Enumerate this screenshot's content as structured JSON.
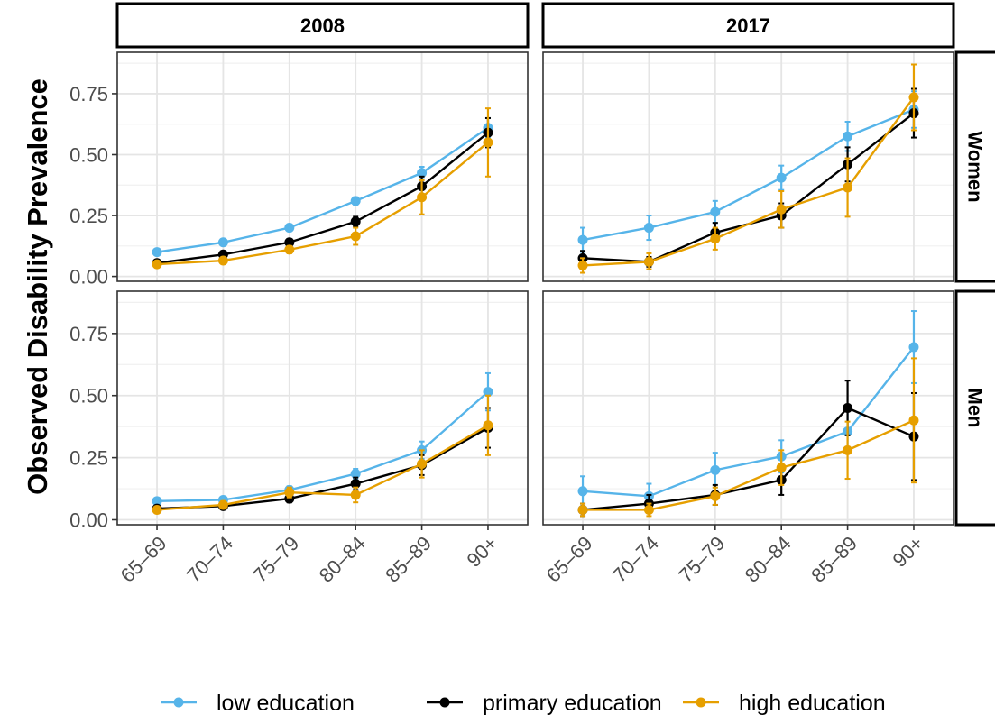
{
  "chart_data": {
    "type": "line",
    "ylabel": "Observed Disability Prevalence",
    "xlabel": "",
    "categories": [
      "65–69",
      "70–74",
      "75–79",
      "80–84",
      "85–89",
      "90+"
    ],
    "ylim": [
      -0.02,
      0.92
    ],
    "yticks": [
      0.0,
      0.25,
      0.5,
      0.75
    ],
    "ytick_labels": [
      "0.00",
      "0.25",
      "0.50",
      "0.75"
    ],
    "columns": [
      "2008",
      "2017"
    ],
    "rows": [
      "Women",
      "Men"
    ],
    "grid": true,
    "legend_position": "bottom",
    "series_meta": [
      {
        "key": "low",
        "name": "low education",
        "color": "#56B4E9"
      },
      {
        "key": "primary",
        "name": "primary education",
        "color": "#000000"
      },
      {
        "key": "high",
        "name": "high education",
        "color": "#E69F00"
      }
    ],
    "panels": [
      {
        "column": "2008",
        "row": "Women",
        "series": {
          "low": {
            "values": [
              0.1,
              0.14,
              0.2,
              0.31,
              0.425,
              0.61
            ],
            "lower": [
              0.09,
              0.13,
              0.19,
              0.295,
              0.4,
              0.57
            ],
            "upper": [
              0.11,
              0.15,
              0.21,
              0.325,
              0.45,
              0.65
            ]
          },
          "primary": {
            "values": [
              0.055,
              0.09,
              0.14,
              0.225,
              0.37,
              0.59
            ],
            "lower": [
              0.045,
              0.08,
              0.13,
              0.205,
              0.33,
              0.53
            ],
            "upper": [
              0.065,
              0.1,
              0.15,
              0.245,
              0.41,
              0.65
            ]
          },
          "high": {
            "values": [
              0.05,
              0.065,
              0.11,
              0.165,
              0.325,
              0.55
            ],
            "lower": [
              0.04,
              0.055,
              0.095,
              0.13,
              0.255,
              0.41
            ],
            "upper": [
              0.06,
              0.075,
              0.125,
              0.2,
              0.395,
              0.69
            ]
          }
        }
      },
      {
        "column": "2017",
        "row": "Women",
        "series": {
          "low": {
            "values": [
              0.15,
              0.2,
              0.265,
              0.405,
              0.575,
              0.685
            ],
            "lower": [
              0.1,
              0.15,
              0.22,
              0.355,
              0.515,
              0.61
            ],
            "upper": [
              0.2,
              0.25,
              0.31,
              0.455,
              0.635,
              0.76
            ]
          },
          "primary": {
            "values": [
              0.075,
              0.06,
              0.18,
              0.25,
              0.46,
              0.67
            ],
            "lower": [
              0.045,
              0.04,
              0.14,
              0.2,
              0.39,
              0.57
            ],
            "upper": [
              0.105,
              0.08,
              0.22,
              0.3,
              0.53,
              0.77
            ]
          },
          "high": {
            "values": [
              0.045,
              0.06,
              0.155,
              0.275,
              0.365,
              0.735
            ],
            "lower": [
              0.015,
              0.03,
              0.11,
              0.2,
              0.245,
              0.6
            ],
            "upper": [
              0.075,
              0.095,
              0.2,
              0.35,
              0.485,
              0.87
            ]
          }
        }
      },
      {
        "column": "2008",
        "row": "Men",
        "series": {
          "low": {
            "values": [
              0.075,
              0.08,
              0.12,
              0.185,
              0.28,
              0.515
            ],
            "lower": [
              0.065,
              0.07,
              0.105,
              0.165,
              0.245,
              0.44
            ],
            "upper": [
              0.085,
              0.09,
              0.135,
              0.205,
              0.315,
              0.59
            ]
          },
          "primary": {
            "values": [
              0.045,
              0.055,
              0.085,
              0.145,
              0.22,
              0.37
            ],
            "lower": [
              0.035,
              0.045,
              0.07,
              0.12,
              0.18,
              0.29
            ],
            "upper": [
              0.055,
              0.065,
              0.1,
              0.17,
              0.26,
              0.45
            ]
          },
          "high": {
            "values": [
              0.04,
              0.06,
              0.11,
              0.1,
              0.225,
              0.38
            ],
            "lower": [
              0.03,
              0.045,
              0.09,
              0.07,
              0.17,
              0.26
            ],
            "upper": [
              0.05,
              0.075,
              0.13,
              0.13,
              0.28,
              0.5
            ]
          }
        }
      },
      {
        "column": "2017",
        "row": "Men",
        "series": {
          "low": {
            "values": [
              0.115,
              0.095,
              0.2,
              0.255,
              0.355,
              0.695
            ],
            "lower": [
              0.055,
              0.045,
              0.13,
              0.19,
              0.27,
              0.55
            ],
            "upper": [
              0.175,
              0.145,
              0.27,
              0.32,
              0.44,
              0.84
            ]
          },
          "primary": {
            "values": [
              0.04,
              0.065,
              0.1,
              0.16,
              0.45,
              0.335
            ],
            "lower": [
              0.015,
              0.03,
              0.06,
              0.1,
              0.34,
              0.16
            ],
            "upper": [
              0.065,
              0.1,
              0.14,
              0.22,
              0.56,
              0.51
            ]
          },
          "high": {
            "values": [
              0.04,
              0.04,
              0.095,
              0.21,
              0.28,
              0.4
            ],
            "lower": [
              0.015,
              0.015,
              0.06,
              0.14,
              0.165,
              0.15
            ],
            "upper": [
              0.065,
              0.065,
              0.13,
              0.28,
              0.395,
              0.65
            ]
          }
        }
      }
    ]
  }
}
